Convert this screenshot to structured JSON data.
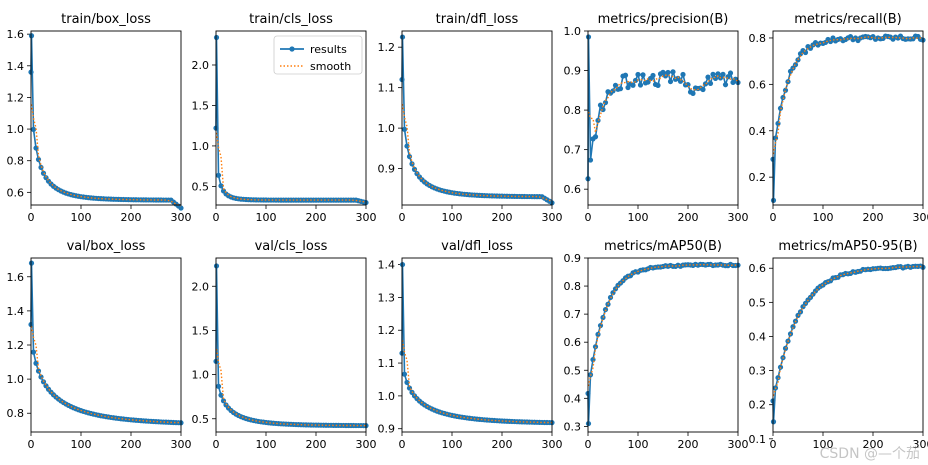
{
  "chart_data": [
    {
      "type": "line",
      "title": "train/box_loss",
      "xlim": [
        0,
        300
      ],
      "ylim": [
        0.52,
        1.62
      ],
      "xticks": [
        0,
        100,
        200,
        300
      ],
      "yticks": [
        0.6,
        0.8,
        1.0,
        1.2,
        1.4,
        1.6
      ],
      "curve": {
        "kind": "decay",
        "start": 1.36,
        "end": 0.55,
        "k": 0.045,
        "rate": 1.45,
        "first": 1.59,
        "tailDrop": 0.05
      }
    },
    {
      "type": "line",
      "title": "train/cls_loss",
      "xlim": [
        0,
        300
      ],
      "ylim": [
        0.27,
        2.42
      ],
      "xticks": [
        0,
        100,
        200,
        300
      ],
      "yticks": [
        0.5,
        1.0,
        1.5,
        2.0
      ],
      "curve": {
        "kind": "decay",
        "start": 1.22,
        "end": 0.33,
        "k": 0.07,
        "rate": 2.0,
        "first": 2.34,
        "tailDrop": 0.03
      }
    },
    {
      "type": "line",
      "title": "train/dfl_loss",
      "xlim": [
        0,
        300
      ],
      "ylim": [
        0.81,
        1.24
      ],
      "xticks": [
        0,
        100,
        200,
        300
      ],
      "yticks": [
        0.9,
        1.0,
        1.1,
        1.2
      ],
      "curve": {
        "kind": "decay",
        "start": 1.12,
        "end": 0.83,
        "k": 0.04,
        "rate": 1.45,
        "first": 1.225,
        "tailDrop": 0.015
      }
    },
    {
      "type": "line",
      "title": "metrics/precision(B)",
      "xlim": [
        0,
        300
      ],
      "ylim": [
        0.56,
        1.0
      ],
      "xticks": [
        0,
        100,
        200,
        300
      ],
      "yticks": [
        0.6,
        0.7,
        0.8,
        0.9,
        1.0
      ],
      "curve": {
        "kind": "precision",
        "start": 0.62,
        "end": 0.88,
        "k": 0.045,
        "first": 0.985,
        "noise": 0.035
      }
    },
    {
      "type": "line",
      "title": "metrics/recall(B)",
      "xlim": [
        0,
        300
      ],
      "ylim": [
        0.08,
        0.83
      ],
      "xticks": [
        0,
        100,
        200,
        300
      ],
      "yticks": [
        0.2,
        0.4,
        0.6,
        0.8
      ],
      "curve": {
        "kind": "growth",
        "start": 0.28,
        "end": 0.8,
        "k": 0.035,
        "first": 0.1,
        "noise": 0.02
      }
    },
    {
      "type": "line",
      "title": "val/box_loss",
      "xlim": [
        0,
        300
      ],
      "ylim": [
        0.69,
        1.71
      ],
      "xticks": [
        0,
        100,
        200,
        300
      ],
      "yticks": [
        0.8,
        1.0,
        1.2,
        1.4,
        1.6
      ],
      "curve": {
        "kind": "decay",
        "start": 1.32,
        "end": 0.73,
        "k": 0.03,
        "rate": 1.0,
        "first": 1.68,
        "tailDrop": 0.0
      }
    },
    {
      "type": "line",
      "title": "val/cls_loss",
      "xlim": [
        0,
        300
      ],
      "ylim": [
        0.35,
        2.32
      ],
      "xticks": [
        0,
        100,
        200,
        300
      ],
      "yticks": [
        0.5,
        1.0,
        1.5,
        2.0
      ],
      "curve": {
        "kind": "decay",
        "start": 1.15,
        "end": 0.42,
        "k": 0.045,
        "rate": 1.2,
        "first": 2.23,
        "tailDrop": 0.0
      }
    },
    {
      "type": "line",
      "title": "val/dfl_loss",
      "xlim": [
        0,
        300
      ],
      "ylim": [
        0.89,
        1.42
      ],
      "xticks": [
        0,
        100,
        200,
        300
      ],
      "yticks": [
        0.9,
        1.0,
        1.1,
        1.2,
        1.3,
        1.4
      ],
      "curve": {
        "kind": "decay",
        "start": 1.13,
        "end": 0.915,
        "k": 0.03,
        "rate": 1.1,
        "first": 1.4,
        "tailDrop": 0.0
      }
    },
    {
      "type": "line",
      "title": "metrics/mAP50(B)",
      "xlim": [
        0,
        300
      ],
      "ylim": [
        0.28,
        0.9
      ],
      "xticks": [
        0,
        100,
        200,
        300
      ],
      "yticks": [
        0.3,
        0.4,
        0.5,
        0.6,
        0.7,
        0.8,
        0.9
      ],
      "curve": {
        "kind": "growth",
        "start": 0.42,
        "end": 0.875,
        "k": 0.03,
        "first": 0.31,
        "noise": 0.006
      }
    },
    {
      "type": "line",
      "title": "metrics/mAP50-95(B)",
      "xlim": [
        0,
        300
      ],
      "ylim": [
        0.12,
        0.63
      ],
      "xticks": [
        0,
        100,
        200,
        300
      ],
      "yticks": [
        0.1,
        0.2,
        0.3,
        0.4,
        0.5,
        0.6
      ],
      "curve": {
        "kind": "growth",
        "start": 0.21,
        "end": 0.605,
        "k": 0.02,
        "first": 0.15,
        "noise": 0.005
      }
    }
  ],
  "legend": {
    "series": [
      {
        "name": "results",
        "color": "#1f77b4",
        "style": "line-marker"
      },
      {
        "name": "smooth",
        "color": "#ff7f0e",
        "style": "dotted"
      }
    ],
    "panel": 1,
    "location": "upper-right"
  },
  "watermark": "CSDN @—个茄",
  "colors": {
    "results": "#1f77b4",
    "smooth": "#ff7f0e"
  }
}
